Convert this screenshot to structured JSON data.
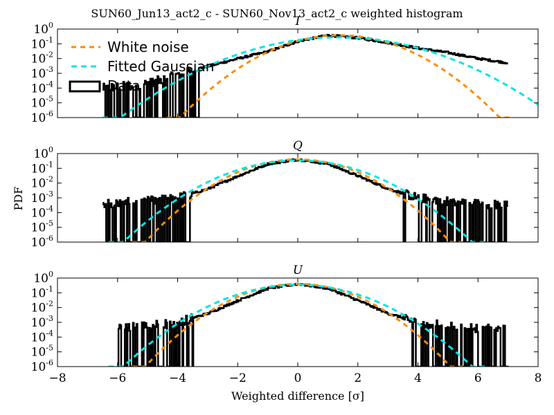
{
  "chart_data": {
    "type": "line",
    "title": "SUN60_Jun13_act2_c - SUN60_Nov13_act2_c weighted histogram",
    "xlabel": "Weighted difference [σ]",
    "ylabel": "PDF",
    "xlim": [
      -8,
      8
    ],
    "ylim": [
      1e-06,
      1
    ],
    "yscale": "log",
    "xticks": [
      "−8",
      "−6",
      "−4",
      "−2",
      "0",
      "2",
      "4",
      "6",
      "8"
    ],
    "legend": {
      "placement": "upper-left of top panel",
      "entries": [
        "White noise",
        "Fitted Gaussian",
        "Data"
      ]
    },
    "colors": {
      "white_noise": "#ff8c00",
      "fitted_gaussian": "#00e5e5",
      "data": "#000000"
    },
    "panels": [
      {
        "name": "I",
        "series": [
          {
            "name": "White noise",
            "model": "gaussian",
            "mean": 1.4,
            "sigma": 1.05
          },
          {
            "name": "Fitted Gaussian",
            "model": "gaussian",
            "mean": 1.35,
            "sigma": 1.45
          },
          {
            "name": "Data",
            "x": [
              -6.5,
              -5,
              -4,
              -3,
              -2,
              -1,
              0,
              1,
              2,
              3,
              4,
              5,
              6,
              7
            ],
            "y": [
              0.0001,
              0.0002,
              0.0008,
              0.003,
              0.01,
              0.03,
              0.15,
              0.38,
              0.25,
              0.12,
              0.05,
              0.025,
              0.01,
              0.005
            ]
          }
        ]
      },
      {
        "name": "Q",
        "series": [
          {
            "name": "White noise",
            "model": "gaussian",
            "mean": 0,
            "sigma": 1.0
          },
          {
            "name": "Fitted Gaussian",
            "model": "gaussian",
            "mean": 0,
            "sigma": 1.15
          },
          {
            "name": "Data",
            "x": [
              -6.5,
              -5,
              -4,
              -3,
              -2,
              -1,
              0,
              1,
              2,
              3,
              4,
              5,
              6,
              7
            ],
            "y": [
              0.0004,
              0.0006,
              0.001,
              0.004,
              0.03,
              0.2,
              0.4,
              0.2,
              0.03,
              0.004,
              0.001,
              0.0006,
              0.0004,
              0.0003
            ]
          }
        ]
      },
      {
        "name": "U",
        "series": [
          {
            "name": "White noise",
            "model": "gaussian",
            "mean": 0,
            "sigma": 1.0
          },
          {
            "name": "Fitted Gaussian",
            "model": "gaussian",
            "mean": 0,
            "sigma": 1.15
          },
          {
            "name": "Data",
            "x": [
              -6,
              -5,
              -4,
              -3,
              -2,
              -1,
              0,
              1,
              2,
              3,
              4,
              5,
              6,
              7
            ],
            "y": [
              0.0004,
              0.0006,
              0.001,
              0.004,
              0.03,
              0.2,
              0.4,
              0.2,
              0.03,
              0.004,
              0.001,
              0.0006,
              0.0004,
              0.0003
            ]
          }
        ]
      }
    ]
  }
}
